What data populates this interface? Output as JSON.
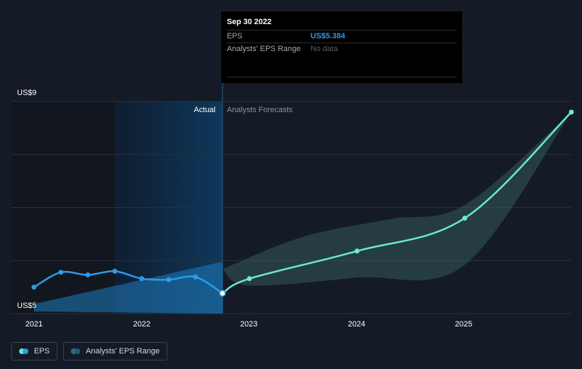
{
  "chart_data": {
    "type": "line",
    "y_axis": {
      "min": 5,
      "max": 9,
      "tick_labels": [
        "US$9",
        "US$5"
      ],
      "unit": "US$"
    },
    "x_axis": {
      "min": 2021.0,
      "max": 2025.99,
      "tick_labels": [
        "2021",
        "2022",
        "2023",
        "2024",
        "2025"
      ]
    },
    "divider_x": 2022.75,
    "region_labels": {
      "actual": "Actual",
      "forecast": "Analysts Forecasts"
    },
    "series": [
      {
        "name": "EPS",
        "color": "#2f9ae6",
        "points": [
          [
            2021.0,
            5.5
          ],
          [
            2021.25,
            5.78
          ],
          [
            2021.5,
            5.73
          ],
          [
            2021.75,
            5.8
          ],
          [
            2022.0,
            5.66
          ],
          [
            2022.25,
            5.64
          ],
          [
            2022.5,
            5.69
          ],
          [
            2022.75,
            5.384
          ]
        ]
      },
      {
        "name": "EPS",
        "color": "#6de8d4",
        "points": [
          [
            2022.75,
            5.384
          ],
          [
            2023.0,
            5.66
          ],
          [
            2024.0,
            6.18
          ],
          [
            2025.0,
            6.8
          ],
          [
            2025.99,
            8.8
          ]
        ]
      }
    ],
    "ranges": [
      {
        "name": "Analysts' EPS Range",
        "color": "#1f7bbf",
        "upper": [
          [
            2021.0,
            5.18
          ],
          [
            2022.75,
            5.98
          ]
        ],
        "lower": [
          [
            2021.0,
            5.04
          ],
          [
            2022.75,
            5.0
          ]
        ]
      },
      {
        "name": "Analysts' EPS Range",
        "color": "#3b6e63",
        "upper": [
          [
            2022.75,
            5.84
          ],
          [
            2023.5,
            6.45
          ],
          [
            2024.3,
            6.78
          ],
          [
            2025.0,
            7.05
          ],
          [
            2025.99,
            8.8
          ]
        ],
        "lower": [
          [
            2022.75,
            5.84
          ],
          [
            2023.0,
            5.53
          ],
          [
            2024.0,
            5.68
          ],
          [
            2025.0,
            5.92
          ],
          [
            2025.99,
            8.8
          ]
        ]
      }
    ]
  },
  "tooltip": {
    "date": "Sep 30 2022",
    "eps_label": "EPS",
    "eps_value": "US$5.384",
    "range_label": "Analysts' EPS Range",
    "range_value": "No data"
  },
  "legend": {
    "eps": "EPS",
    "range": "Analysts' EPS Range"
  },
  "colors": {
    "background": "#151b26",
    "eps_actual": "#2f9ae6",
    "eps_forecast": "#6de8d4",
    "range_forecast": "#3b6e63"
  }
}
